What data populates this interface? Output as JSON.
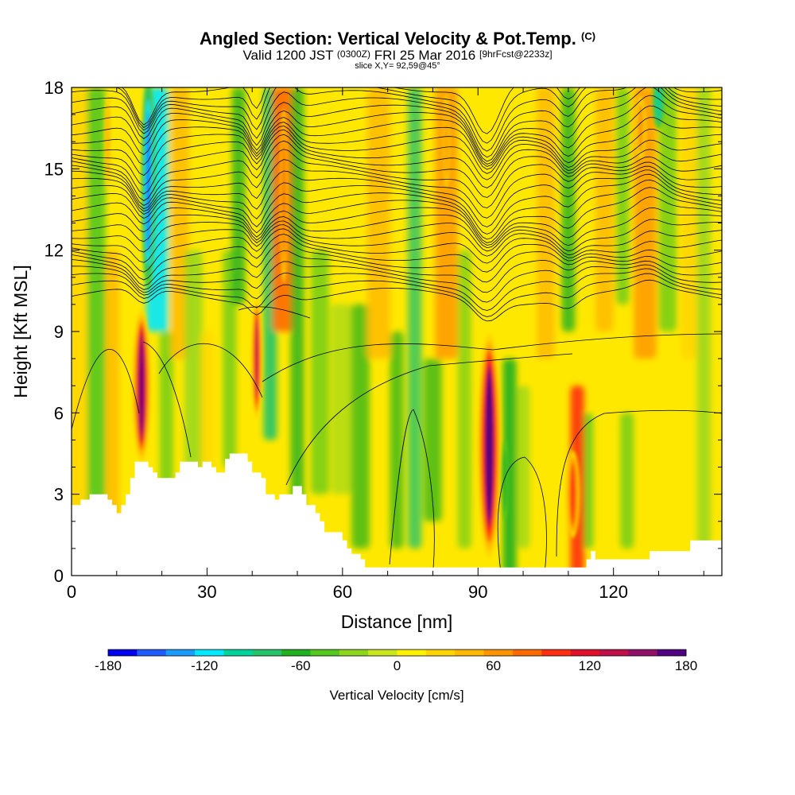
{
  "header": {
    "title_main": "Angled Section: Vertical Velocity & Pot.Temp.",
    "title_mark": "(C)",
    "valid_prefix": "Valid 1200 JST",
    "valid_utc": "(0300Z)",
    "valid_date": "FRI 25 Mar 2016",
    "forecast_info": "[9hrFcst@2233z]",
    "slice_info": "slice X,Y= 92,59@45°"
  },
  "chart_data": {
    "type": "heatmap",
    "xlabel": "Distance [nm]",
    "ylabel": "Height [Kft MSL]",
    "xlim": [
      0,
      144
    ],
    "ylim": [
      0,
      18
    ],
    "x_ticks": [
      "0",
      "30",
      "60",
      "90",
      "120"
    ],
    "y_ticks": [
      "0",
      "3",
      "6",
      "9",
      "12",
      "15",
      "18"
    ],
    "colorbar": {
      "label": "Vertical Velocity [cm/s]",
      "range": [
        -180,
        180
      ],
      "tick_labels": [
        "-180",
        "-120",
        "-60",
        "0",
        "60",
        "120",
        "180"
      ],
      "colors": [
        "#0000ee",
        "#1f5cff",
        "#1a9cff",
        "#00e8ff",
        "#00d49a",
        "#26c46a",
        "#20b020",
        "#54c81e",
        "#8ed61e",
        "#cce61e",
        "#fff200",
        "#ffd400",
        "#ffb800",
        "#ff9400",
        "#ff6a00",
        "#ff2e10",
        "#e0102a",
        "#c0104a",
        "#90106a",
        "#500080"
      ]
    },
    "features": [
      {
        "x": 15.5,
        "peak_cm_s": 180
      },
      {
        "x": 41,
        "peak_cm_s": 120
      },
      {
        "x": 92.5,
        "peak_cm_s": 180
      },
      {
        "x": 111,
        "peak_cm_s": 90
      },
      {
        "x": 17,
        "peak_cm_s": -150
      },
      {
        "x": 130,
        "peak_cm_s": -100
      }
    ]
  }
}
